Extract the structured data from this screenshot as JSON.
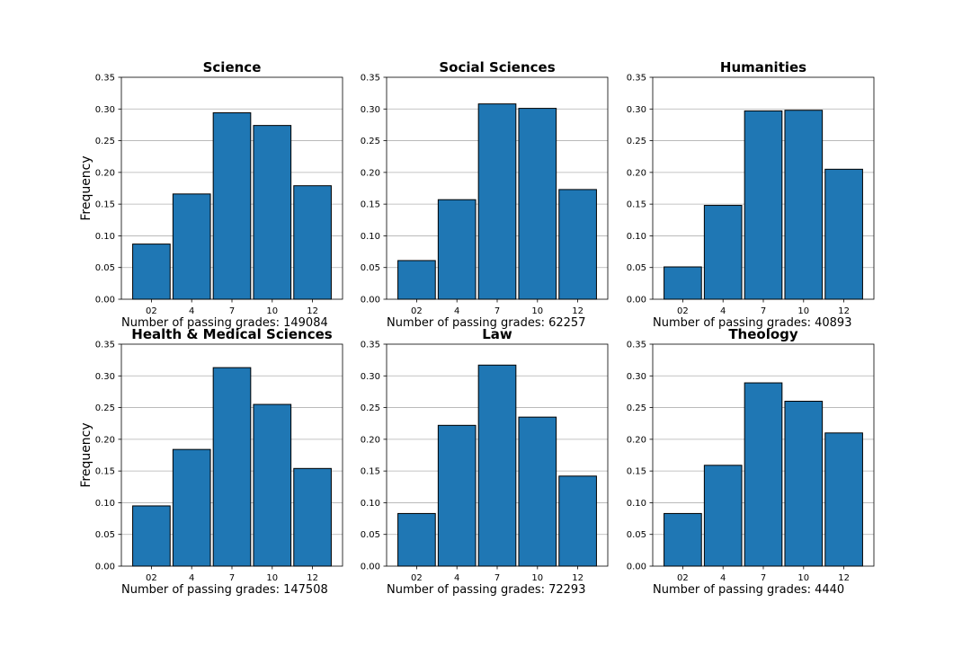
{
  "chart_data": [
    {
      "type": "bar",
      "title": "Science",
      "categories": [
        "02",
        "4",
        "7",
        "10",
        "12"
      ],
      "values": [
        0.087,
        0.166,
        0.294,
        0.274,
        0.179
      ],
      "ylabel": "Frequency",
      "xlabel": "Number of passing grades: 149084",
      "ylim": [
        0,
        0.35
      ],
      "yticks": [
        "0.00",
        "0.05",
        "0.10",
        "0.15",
        "0.20",
        "0.25",
        "0.30",
        "0.35"
      ],
      "grid": "horizontal",
      "color": "#1f77b4"
    },
    {
      "type": "bar",
      "title": "Social Sciences",
      "categories": [
        "02",
        "4",
        "7",
        "10",
        "12"
      ],
      "values": [
        0.061,
        0.157,
        0.308,
        0.301,
        0.173
      ],
      "ylabel": "",
      "xlabel": "Number of passing grades: 62257",
      "ylim": [
        0,
        0.35
      ],
      "yticks": [
        "0.00",
        "0.05",
        "0.10",
        "0.15",
        "0.20",
        "0.25",
        "0.30",
        "0.35"
      ],
      "grid": "horizontal",
      "color": "#1f77b4"
    },
    {
      "type": "bar",
      "title": "Humanities",
      "categories": [
        "02",
        "4",
        "7",
        "10",
        "12"
      ],
      "values": [
        0.051,
        0.148,
        0.297,
        0.298,
        0.205
      ],
      "ylabel": "",
      "xlabel": "Number of passing grades: 40893",
      "ylim": [
        0,
        0.35
      ],
      "yticks": [
        "0.00",
        "0.05",
        "0.10",
        "0.15",
        "0.20",
        "0.25",
        "0.30",
        "0.35"
      ],
      "grid": "horizontal",
      "color": "#1f77b4"
    },
    {
      "type": "bar",
      "title": "Health & Medical Sciences",
      "categories": [
        "02",
        "4",
        "7",
        "10",
        "12"
      ],
      "values": [
        0.095,
        0.184,
        0.313,
        0.255,
        0.154
      ],
      "ylabel": "Frequency",
      "xlabel": "Number of passing grades: 147508",
      "ylim": [
        0,
        0.35
      ],
      "yticks": [
        "0.00",
        "0.05",
        "0.10",
        "0.15",
        "0.20",
        "0.25",
        "0.30",
        "0.35"
      ],
      "grid": "horizontal",
      "color": "#1f77b4"
    },
    {
      "type": "bar",
      "title": "Law",
      "categories": [
        "02",
        "4",
        "7",
        "10",
        "12"
      ],
      "values": [
        0.083,
        0.222,
        0.317,
        0.235,
        0.142
      ],
      "ylabel": "",
      "xlabel": "Number of passing grades: 72293",
      "ylim": [
        0,
        0.35
      ],
      "yticks": [
        "0.00",
        "0.05",
        "0.10",
        "0.15",
        "0.20",
        "0.25",
        "0.30",
        "0.35"
      ],
      "grid": "horizontal",
      "color": "#1f77b4"
    },
    {
      "type": "bar",
      "title": "Theology",
      "categories": [
        "02",
        "4",
        "7",
        "10",
        "12"
      ],
      "values": [
        0.083,
        0.159,
        0.289,
        0.26,
        0.21
      ],
      "ylabel": "",
      "xlabel": "Number of passing grades: 4440",
      "ylim": [
        0,
        0.35
      ],
      "yticks": [
        "0.00",
        "0.05",
        "0.10",
        "0.15",
        "0.20",
        "0.25",
        "0.30",
        "0.35"
      ],
      "grid": "horizontal",
      "color": "#1f77b4"
    }
  ]
}
